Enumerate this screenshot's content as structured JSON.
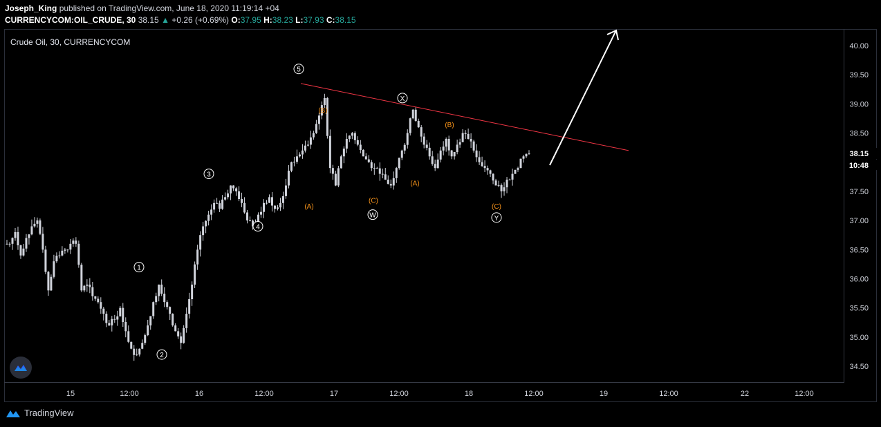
{
  "header": {
    "author": "Joseph_King",
    "published": "published on TradingView.com, June 18, 2020 11:19:14 +04",
    "symbol": "CURRENCYCOM:OIL_CRUDE, 30",
    "last": "38.15",
    "change": "+0.26 (+0.69%)",
    "o_label": "O:",
    "o_value": "37.95",
    "h_label": "H:",
    "h_value": "38.23",
    "l_label": "L:",
    "l_value": "37.93",
    "c_label": "C:",
    "c_value": "38.15"
  },
  "legend_text": "Crude Oil, 30, CURRENCYCOM",
  "footer_brand": "TradingView",
  "colors": {
    "up": "#26a69a",
    "trendline": "#f23645",
    "wave_orange": "#f7931a",
    "candle": "#d1d4dc"
  },
  "chart_data": {
    "type": "candlestick",
    "x_axis_ticks": [
      "15",
      "12:00",
      "16",
      "12:00",
      "17",
      "12:00",
      "18",
      "12:00",
      "19",
      "12:00",
      "22",
      "12:00"
    ],
    "y_axis_ticks": [
      "40.00",
      "39.50",
      "39.00",
      "38.50",
      "38.00",
      "37.50",
      "37.00",
      "36.50",
      "36.00",
      "35.50",
      "35.00",
      "34.50"
    ],
    "y_range": [
      34.3,
      40.2
    ],
    "price_tag": "38.15",
    "countdown_tag": "10:48",
    "close_path": [
      36.6,
      36.8,
      36.4,
      36.7,
      36.9,
      37.0,
      36.5,
      35.8,
      36.3,
      36.4,
      36.5,
      36.6,
      36.6,
      35.8,
      35.9,
      35.7,
      35.6,
      35.4,
      35.2,
      35.3,
      35.5,
      35.1,
      34.8,
      34.7,
      34.9,
      35.2,
      35.6,
      35.9,
      35.6,
      35.4,
      35.1,
      34.9,
      35.4,
      35.9,
      36.5,
      36.9,
      37.1,
      37.3,
      37.2,
      37.4,
      37.6,
      37.5,
      37.3,
      37.0,
      36.9,
      37.1,
      37.3,
      37.4,
      37.2,
      37.3,
      37.6,
      38.0,
      38.1,
      38.2,
      38.3,
      38.5,
      38.8,
      39.1,
      37.9,
      37.6,
      38.1,
      38.4,
      38.5,
      38.3,
      38.1,
      38.0,
      37.9,
      37.8,
      37.7,
      37.6,
      37.9,
      38.2,
      38.5,
      38.9,
      38.6,
      38.3,
      38.1,
      37.9,
      38.2,
      38.4,
      38.1,
      38.3,
      38.5,
      38.4,
      38.2,
      38.0,
      37.9,
      37.8,
      37.6,
      37.5,
      37.7,
      37.8,
      37.9,
      38.1,
      38.15
    ],
    "trendline": {
      "from": [
        435,
        39.35
      ],
      "to": [
        909,
        38.2
      ]
    },
    "wave_labels": [
      {
        "text": "1",
        "kind": "circled",
        "x": 201,
        "price": 36.2
      },
      {
        "text": "2",
        "kind": "circled",
        "x": 234,
        "price": 34.7
      },
      {
        "text": "3",
        "kind": "circled",
        "x": 302,
        "price": 37.8
      },
      {
        "text": "4",
        "kind": "circled",
        "x": 373,
        "price": 36.9
      },
      {
        "text": "5",
        "kind": "circled",
        "x": 432,
        "price": 39.6
      },
      {
        "text": "X",
        "kind": "circled",
        "x": 582,
        "price": 39.1
      },
      {
        "text": "W",
        "kind": "circled",
        "x": 539,
        "price": 37.1
      },
      {
        "text": "Y",
        "kind": "circled",
        "x": 718,
        "price": 37.05
      },
      {
        "text": "(A)",
        "kind": "orange",
        "x": 447,
        "price": 37.25
      },
      {
        "text": "(B)",
        "kind": "orange",
        "x": 467,
        "price": 38.9
      },
      {
        "text": "(C)",
        "kind": "orange",
        "x": 540,
        "price": 37.35
      },
      {
        "text": "(A)",
        "kind": "orange",
        "x": 600,
        "price": 37.65
      },
      {
        "text": "(B)",
        "kind": "orange",
        "x": 650,
        "price": 38.65
      },
      {
        "text": "(C)",
        "kind": "orange",
        "x": 718,
        "price": 37.25
      }
    ]
  }
}
